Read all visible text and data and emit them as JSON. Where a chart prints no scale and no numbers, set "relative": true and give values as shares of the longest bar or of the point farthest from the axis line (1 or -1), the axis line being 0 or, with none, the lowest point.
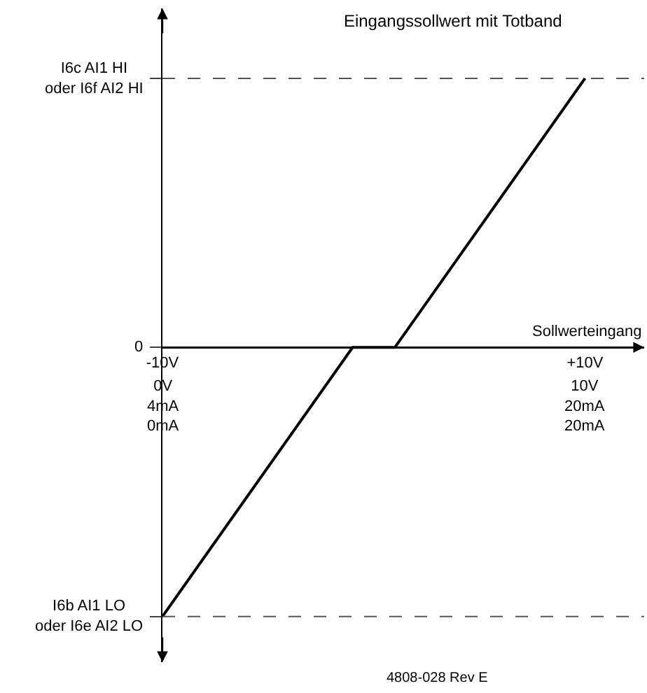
{
  "chart_data": {
    "type": "line",
    "title": "Eingangssollwert mit Totband",
    "xlabel": "Sollwerteingang",
    "relative": true,
    "x": [
      -10,
      -1,
      1,
      10
    ],
    "series": [
      {
        "color": "#000000",
        "values": [
          -1,
          0,
          0,
          1
        ]
      }
    ],
    "xlim": [
      -10,
      12.8
    ],
    "xticks": [
      {
        "value": -10,
        "label": "-10V"
      },
      {
        "value": 10,
        "label": "+10V"
      }
    ],
    "ref_lines": [
      {
        "axis": "y",
        "value": 1,
        "label": "I6c AI1 HI\noder I6f AI2 HI",
        "color": "#555555",
        "line_style": "dashed"
      },
      {
        "axis": "y",
        "value": 0,
        "label": "0",
        "color": "#000000",
        "line_style": "solid"
      },
      {
        "axis": "y",
        "value": -1,
        "label": "I6b AI1 LO\noder I6e AI2 LO",
        "color": "#555555",
        "line_style": "dashed"
      }
    ],
    "annotations": [
      {
        "text": "0V\n4mA\n0mA",
        "x": -10,
        "y": 0
      },
      {
        "text": "10V\n20mA\n20mA",
        "x": 10,
        "y": 0
      },
      "4808-028 Rev E"
    ],
    "grid": false,
    "marker": "none",
    "line_style": "solid"
  }
}
